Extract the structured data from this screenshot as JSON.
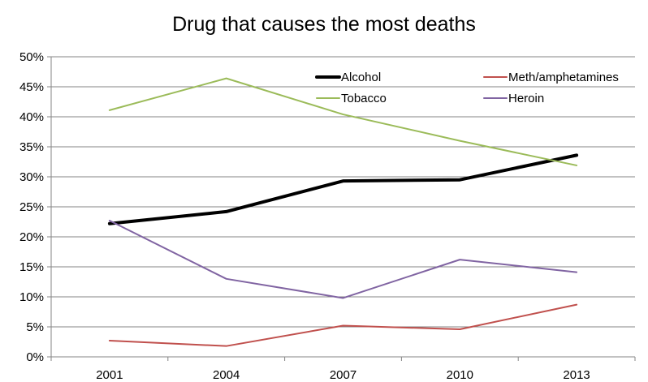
{
  "chart_data": {
    "type": "line",
    "title": "Drug that causes the most deaths",
    "x": [
      "2001",
      "2004",
      "2007",
      "2010",
      "2013"
    ],
    "ylim": [
      0,
      50
    ],
    "yticks": [
      0,
      5,
      10,
      15,
      20,
      25,
      30,
      35,
      40,
      45,
      50
    ],
    "ytick_suffix": "%",
    "grid": true,
    "legend_position": "top-right (inside plot)",
    "series": [
      {
        "name": "Alcohol",
        "values": [
          22.2,
          24.2,
          29.3,
          29.5,
          33.6
        ],
        "color": "#000000",
        "width": 4
      },
      {
        "name": "Meth/amphetamines",
        "values": [
          2.7,
          1.8,
          5.2,
          4.6,
          8.7
        ],
        "color": "#C0504D",
        "width": 2
      },
      {
        "name": "Tobacco",
        "values": [
          41.1,
          46.4,
          40.4,
          36.0,
          31.9
        ],
        "color": "#9BBB59",
        "width": 2
      },
      {
        "name": "Heroin",
        "values": [
          22.7,
          13.0,
          9.8,
          16.2,
          14.1
        ],
        "color": "#8064A2",
        "width": 2
      }
    ]
  }
}
